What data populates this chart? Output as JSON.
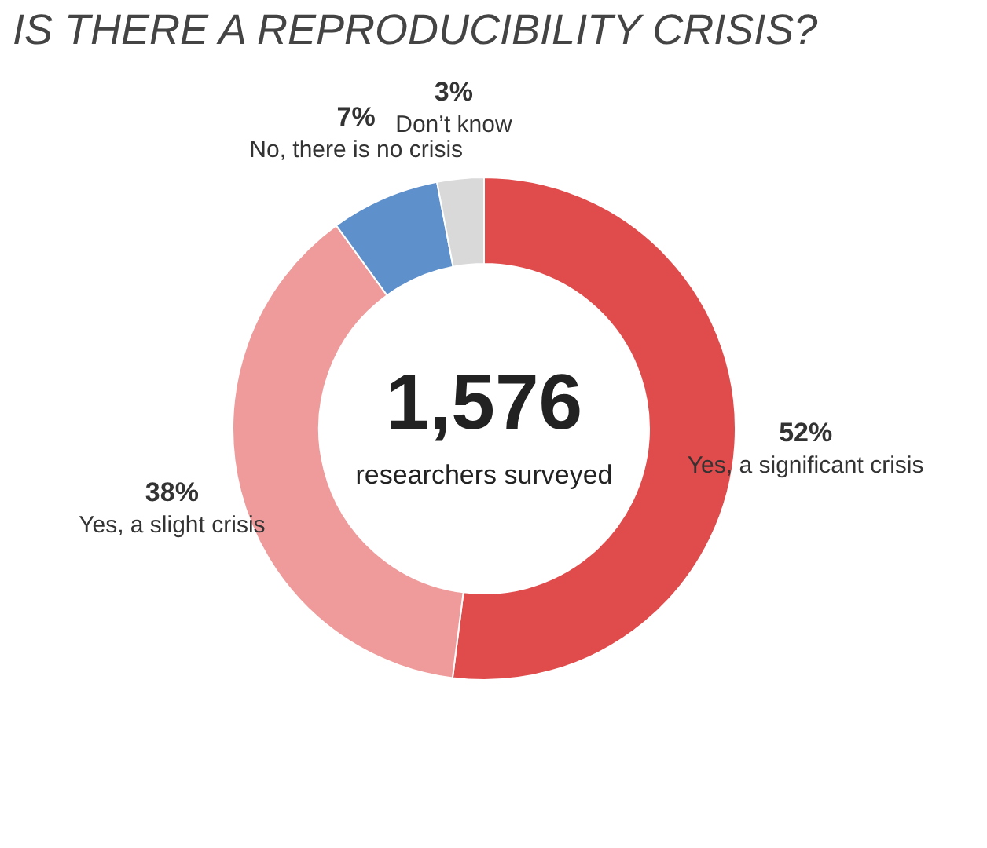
{
  "chart_data": {
    "type": "donut",
    "title": "IS THERE A REPRODUCIBILITY CRISIS?",
    "categories": [
      "Yes, a significant crisis",
      "Yes, a slight crisis",
      "No, there is no crisis",
      "Don’t know"
    ],
    "values": [
      52,
      38,
      7,
      3
    ],
    "colors": [
      "#e04b4b",
      "#ef9b9b",
      "#5e90cc",
      "#d9d9d9"
    ],
    "value_labels": [
      "52%",
      "38%",
      "7%",
      "3%"
    ],
    "annotations": [
      "1,576",
      "researchers surveyed"
    ],
    "legend": false
  }
}
